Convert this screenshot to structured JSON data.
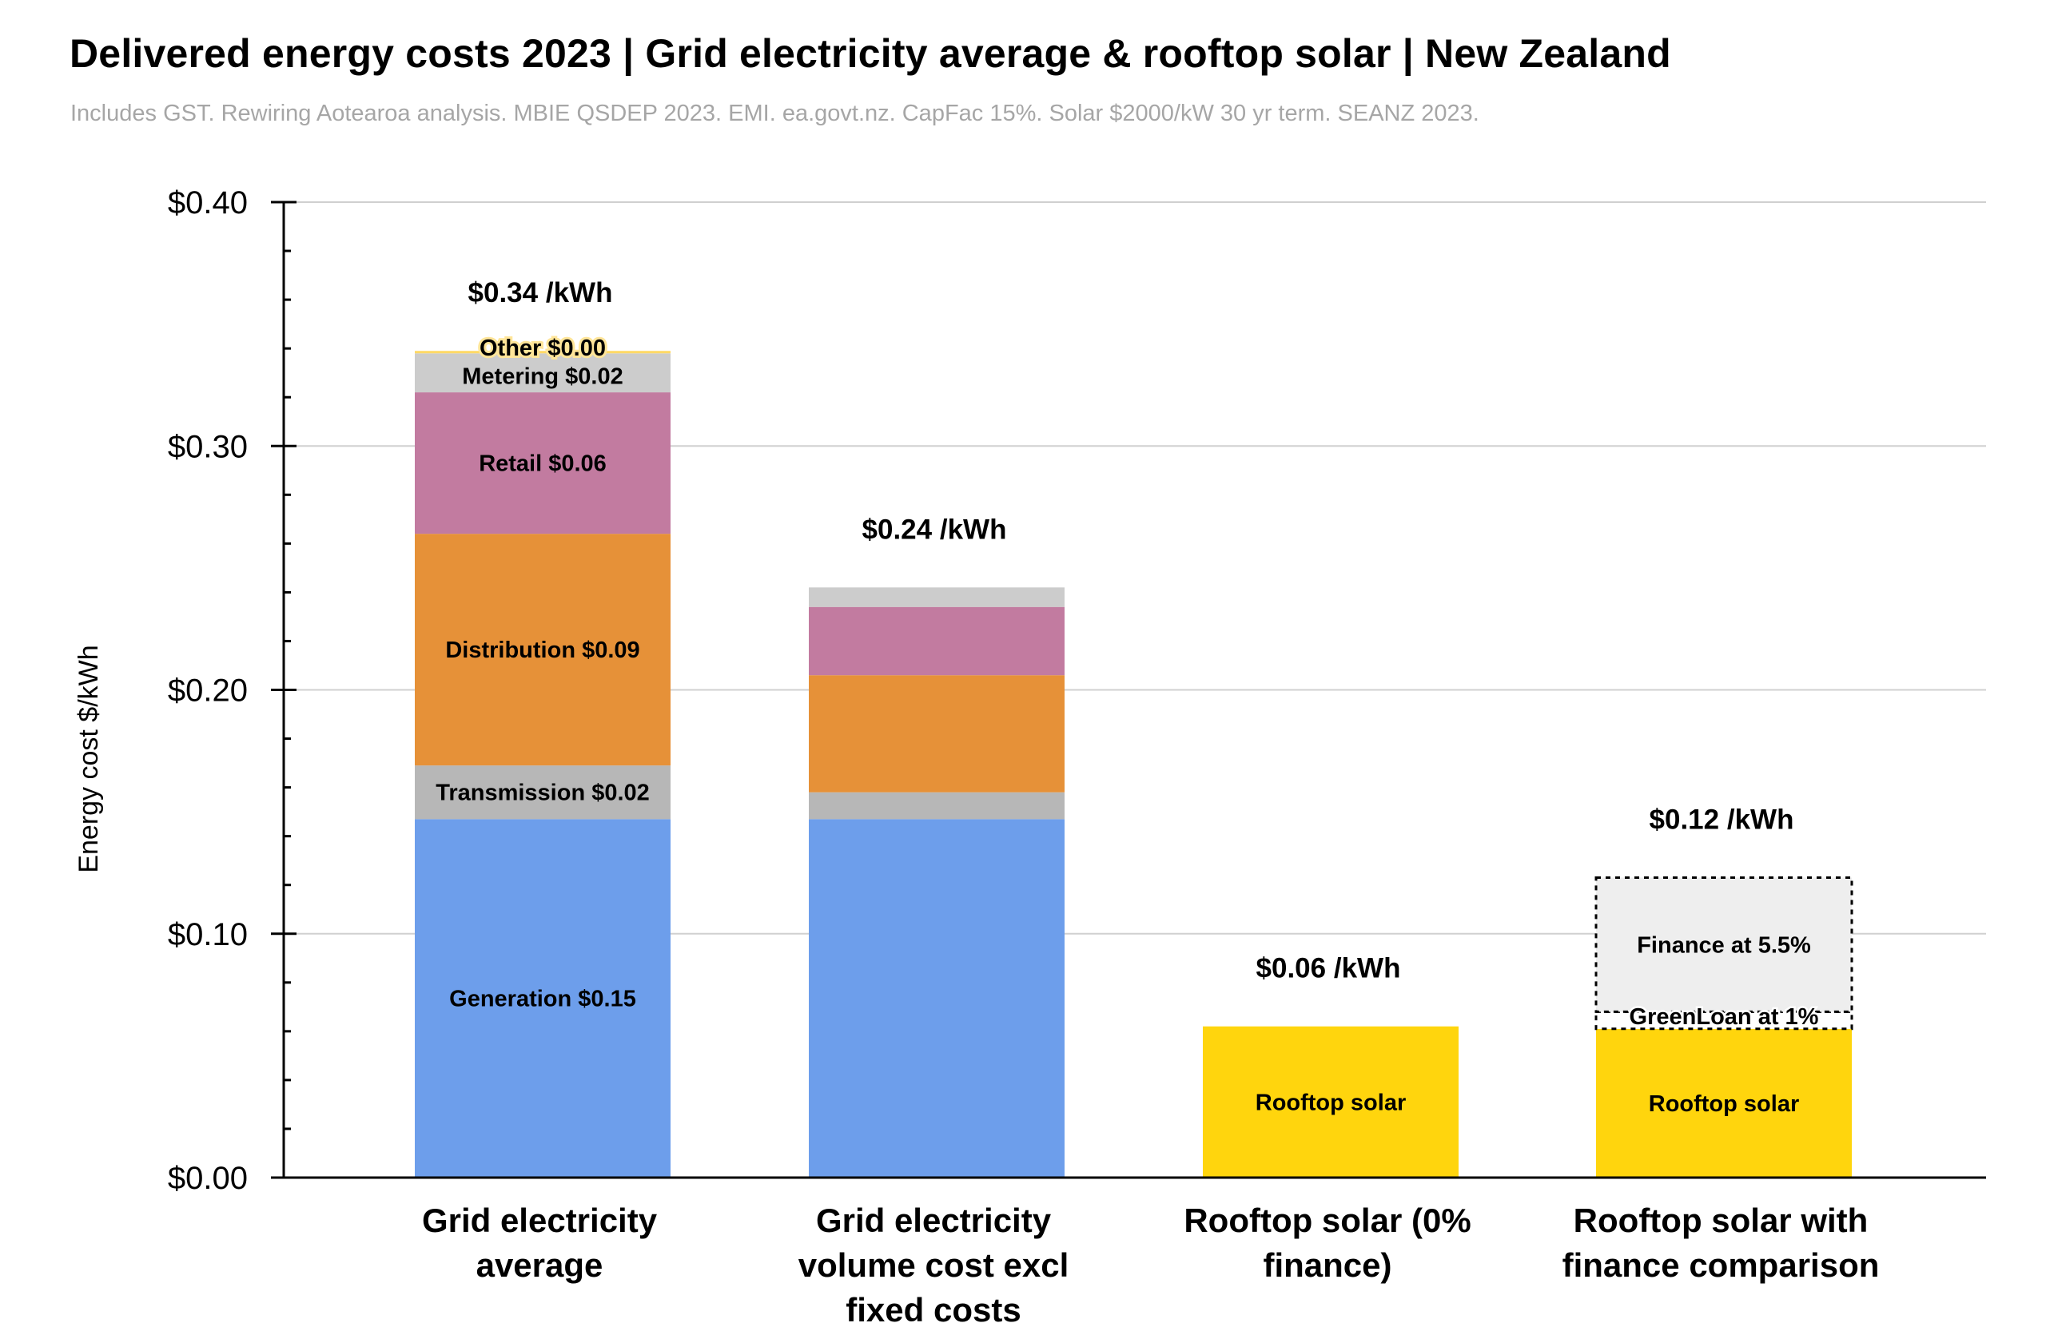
{
  "chart_data": {
    "type": "bar",
    "stacked": true,
    "title": "Delivered energy costs 2023 | Grid electricity average & rooftop solar | New Zealand",
    "subtitle": "Includes GST. Rewiring Aotearoa analysis. MBIE QSDEP 2023. EMI. ea.govt.nz. CapFac 15%. Solar $2000/kW 30 yr term. SEANZ 2023.",
    "xlabel": "",
    "ylabel": "Energy cost $/kWh",
    "ylim": [
      0,
      0.4
    ],
    "y_ticks": [
      "$0.00",
      "$0.10",
      "$0.20",
      "$0.30",
      "$0.40"
    ],
    "y_tick_values": [
      0,
      0.1,
      0.2,
      0.3,
      0.4
    ],
    "grid": true,
    "legend": "none",
    "categories": [
      [
        "Grid electricity",
        "average"
      ],
      [
        "Grid electricity",
        "volume cost excl",
        "fixed costs"
      ],
      [
        "Rooftop solar (0%",
        "finance)"
      ],
      [
        "Rooftop solar with",
        "finance comparison"
      ]
    ],
    "totals": [
      "$0.34 /kWh",
      "$0.24 /kWh",
      "$0.06 /kWh",
      "$0.12 /kWh"
    ],
    "total_values": [
      0.34,
      0.24,
      0.06,
      0.12
    ],
    "stacks": [
      [
        {
          "component": "generation",
          "value": 0.147,
          "label": "Generation $0.15",
          "color": "#6d9eeb"
        },
        {
          "component": "transmission",
          "value": 0.022,
          "label": "Transmission $0.02",
          "color": "#b7b7b7"
        },
        {
          "component": "distribution",
          "value": 0.095,
          "label": "Distribution $0.09",
          "color": "#e69138"
        },
        {
          "component": "retail",
          "value": 0.058,
          "label": "Retail $0.06",
          "color": "#c27ba0"
        },
        {
          "component": "metering",
          "value": 0.016,
          "label": "Metering $0.02",
          "color": "#cccccc"
        },
        {
          "component": "other",
          "value": 0.001,
          "label": "Other $0.00",
          "color": "#ffd966"
        }
      ],
      [
        {
          "component": "generation",
          "value": 0.147,
          "label": "",
          "color": "#6d9eeb"
        },
        {
          "component": "transmission",
          "value": 0.011,
          "label": "",
          "color": "#b7b7b7"
        },
        {
          "component": "distribution",
          "value": 0.048,
          "label": "",
          "color": "#e69138"
        },
        {
          "component": "retail",
          "value": 0.028,
          "label": "",
          "color": "#c27ba0"
        },
        {
          "component": "metering",
          "value": 0.008,
          "label": "",
          "color": "#cccccc"
        }
      ],
      [
        {
          "component": "rooftop-solar",
          "value": 0.062,
          "label": "Rooftop solar",
          "color": "#ffd50d"
        }
      ],
      [
        {
          "component": "rooftop-solar",
          "value": 0.061,
          "label": "Rooftop solar",
          "color": "#ffd50d"
        },
        {
          "component": "green-loan",
          "value": 0.007,
          "label": "GreenLoan at 1%",
          "color": "#ffffff",
          "dashed": true
        },
        {
          "component": "finance",
          "value": 0.055,
          "label": "Finance at 5.5%",
          "color": "#eeeeee",
          "dashed": true
        }
      ]
    ]
  }
}
